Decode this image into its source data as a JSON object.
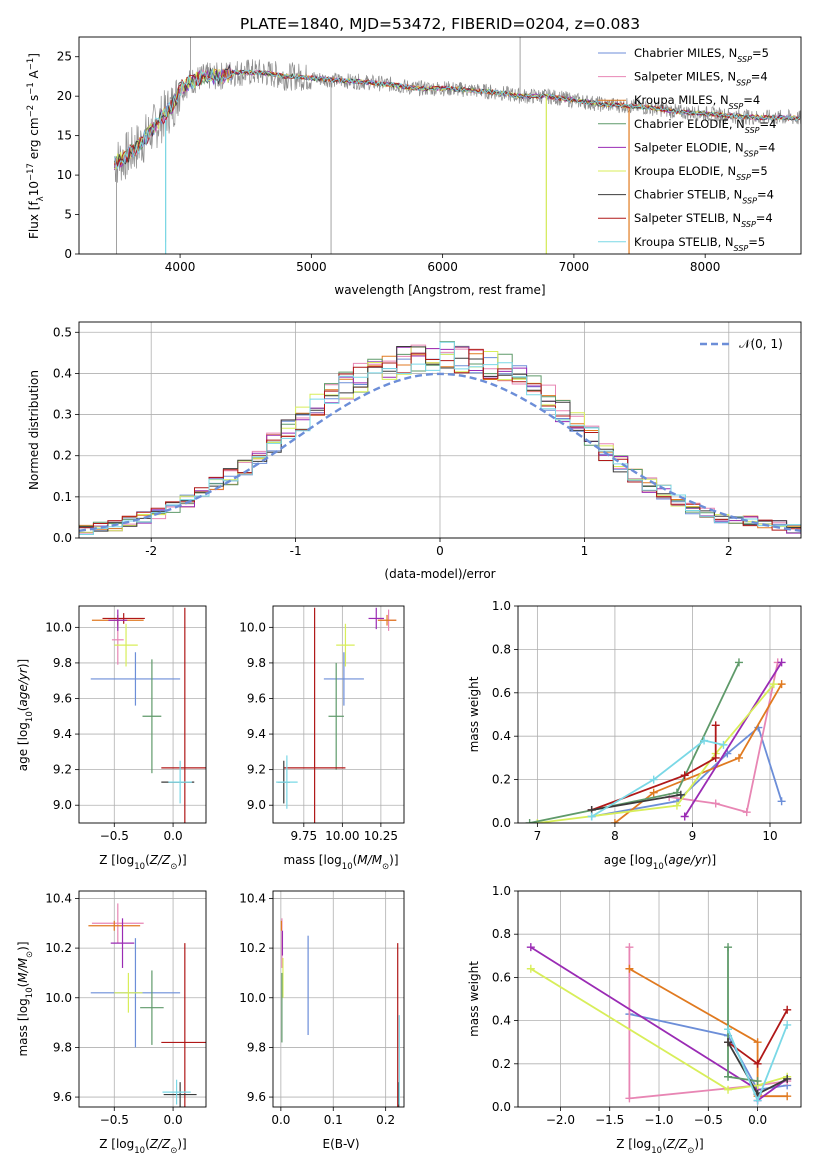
{
  "title": "PLATE=1840, MJD=53472, FIBERID=0204, z=0.083",
  "colors": [
    "#6c8ed8",
    "#e886b4",
    "#3b3b3b",
    "#e07a20",
    "#9a2bb4",
    "#d8ee5a",
    "#5f9a6a",
    "#b01818",
    "#7ad8e6",
    "#8c8c8c"
  ],
  "chart_data": [
    {
      "id": "spectrum",
      "type": "line",
      "title": "PLATE=1840, MJD=53472, FIBERID=0204, z=0.083",
      "xlabel": "wavelength [Angstrom, rest frame]",
      "ylabel": "Flux [f",
      "ylabel_sub": "λ",
      "ylabel_rest": "10",
      "ylabel_exp": "−17",
      "ylabel_unit": " erg cm",
      "ylabel_unit_exp": "−2",
      "ylabel_s": " s",
      "ylabel_s_exp": "−1",
      "ylabel_A": " A",
      "ylabel_A_exp": "−1",
      "ylabel_close": "]",
      "xlim": [
        3230,
        8730
      ],
      "ylim": [
        0,
        27.5
      ],
      "xticks": [
        4000,
        5000,
        6000,
        7000,
        8000
      ],
      "yticks": [
        0,
        5,
        10,
        15,
        20,
        25
      ],
      "legend_position": "top-right",
      "legend": [
        {
          "prefix": "Chabrier MILES, N",
          "sub": "SSP",
          "suffix": "=5",
          "color_index": 0
        },
        {
          "prefix": "Salpeter MILES, N",
          "sub": "SSP",
          "suffix": "=4",
          "color_index": 1
        },
        {
          "prefix": "Kroupa MILES, N",
          "sub": "SSP",
          "suffix": "=4",
          "color_index": 3
        },
        {
          "prefix": "Chabrier ELODIE, N",
          "sub": "SSP",
          "suffix": "=4",
          "color_index": 6
        },
        {
          "prefix": "Salpeter ELODIE, N",
          "sub": "SSP",
          "suffix": "=4",
          "color_index": 4
        },
        {
          "prefix": "Kroupa ELODIE, N",
          "sub": "SSP",
          "suffix": "=5",
          "color_index": 5
        },
        {
          "prefix": "Chabrier STELIB, N",
          "sub": "SSP",
          "suffix": "=4",
          "color_index": 2
        },
        {
          "prefix": "Salpeter STELIB, N",
          "sub": "SSP",
          "suffix": "=4",
          "color_index": 7
        },
        {
          "prefix": "Kroupa STELIB, N",
          "sub": "SSP",
          "suffix": "=5",
          "color_index": 8
        }
      ],
      "continuum": {
        "x": [
          3500,
          3600,
          3700,
          3800,
          3900,
          3950,
          4000,
          4100,
          4200,
          4300,
          4400,
          4500,
          4600,
          4700,
          4800,
          4900,
          5000,
          5200,
          5400,
          5600,
          5800,
          6000,
          6200,
          6400,
          6600,
          6800,
          7000,
          7200,
          7400,
          7600,
          7800,
          8000,
          8200,
          8400,
          8600,
          8730
        ],
        "y": [
          11.5,
          12.5,
          14,
          16,
          18,
          19,
          21,
          22,
          22.5,
          22.5,
          23,
          23,
          23,
          22.8,
          22.5,
          22.5,
          22.3,
          22,
          21.8,
          21.5,
          21,
          21,
          20.8,
          20.5,
          20,
          20,
          19.5,
          19,
          18.8,
          18.5,
          18,
          17.8,
          17.5,
          17.3,
          17.3,
          17.2
        ]
      },
      "deep_features": [
        {
          "x": 3890,
          "y": 1.5
        },
        {
          "x": 5150,
          "y": 0
        },
        {
          "x": 6790,
          "y": 0
        },
        {
          "x": 7420,
          "y": 0
        },
        {
          "x": 3515,
          "y": 0
        }
      ],
      "spike_features": [
        {
          "x": 4080,
          "y": 28
        },
        {
          "x": 6590,
          "y": 28
        }
      ]
    },
    {
      "id": "residuals",
      "type": "step",
      "xlabel": "(data-model)/error",
      "ylabel": "Normed distribution",
      "xlim": [
        -2.5,
        2.5
      ],
      "ylim": [
        0,
        0.525
      ],
      "xticks": [
        -2,
        -1,
        0,
        1,
        2
      ],
      "yticks": [
        0.0,
        0.1,
        0.2,
        0.3,
        0.4,
        0.5
      ],
      "legend_position": "top-right",
      "reference_label": "𝒩(0, 1)",
      "reference_color": "#6c8ed8",
      "bin_width": 0.1,
      "series_profile": [
        0.02,
        0.025,
        0.03,
        0.04,
        0.05,
        0.06,
        0.075,
        0.09,
        0.11,
        0.13,
        0.15,
        0.175,
        0.2,
        0.23,
        0.26,
        0.29,
        0.32,
        0.35,
        0.37,
        0.39,
        0.41,
        0.42,
        0.43,
        0.44,
        0.44,
        0.44,
        0.43,
        0.43,
        0.42,
        0.41,
        0.39,
        0.37,
        0.34,
        0.31,
        0.28,
        0.25,
        0.21,
        0.18,
        0.15,
        0.13,
        0.11,
        0.09,
        0.07,
        0.06,
        0.05,
        0.045,
        0.04,
        0.035,
        0.03,
        0.025
      ]
    },
    {
      "id": "age-vs-Z",
      "type": "scatter",
      "xlabel": "Z [log",
      "xlabel_sub": "10",
      "xlabel_rest": "(Z/Z",
      "xlabel_sun": "⊙",
      "xlabel_close": ")]",
      "ylabel": "age  [log",
      "ylabel_sub": "10",
      "ylabel_rest": "(age/yr)]",
      "xlim": [
        -0.8,
        0.28
      ],
      "ylim": [
        8.9,
        10.12
      ],
      "xticks": [
        -0.5,
        0.0
      ],
      "xticklabels": [
        "−0.5",
        "0.0"
      ],
      "yticks": [
        9.0,
        9.2,
        9.4,
        9.6,
        9.8,
        10.0
      ],
      "points": [
        {
          "x": -0.32,
          "y": 9.71,
          "xerr": 0.38,
          "yerr": 0.15,
          "color_index": 0
        },
        {
          "x": -0.47,
          "y": 9.93,
          "xerr": 0.05,
          "yerr": 0.14,
          "color_index": 1
        },
        {
          "x": -0.47,
          "y": 10.04,
          "xerr": 0.22,
          "yerr": 0.03,
          "color_index": 3
        },
        {
          "x": -0.42,
          "y": 10.05,
          "xerr": 0.18,
          "yerr": 0.03,
          "color_index": 7
        },
        {
          "x": -0.47,
          "y": 10.04,
          "xerr": 0.08,
          "yerr": 0.06,
          "color_index": 4
        },
        {
          "x": -0.4,
          "y": 9.9,
          "xerr": 0.1,
          "yerr": 0.12,
          "color_index": 5
        },
        {
          "x": -0.18,
          "y": 9.5,
          "xerr": 0.08,
          "yerr": 0.32,
          "color_index": 6
        },
        {
          "x": 0.1,
          "y": 9.21,
          "xerr": 0.2,
          "yerr": 0.9,
          "color_index": 7
        },
        {
          "x": 0.04,
          "y": 9.13,
          "xerr": 0.14,
          "yerr": 0.0,
          "color_index": 2
        },
        {
          "x": 0.06,
          "y": 9.13,
          "xerr": 0.1,
          "yerr": 0.12,
          "color_index": 8
        }
      ]
    },
    {
      "id": "age-vs-mass",
      "type": "scatter",
      "xlabel": "mass [log",
      "xlabel_sub": "10",
      "xlabel_rest": "(M/M",
      "xlabel_sun": "⊙",
      "xlabel_close": ")]",
      "xlim": [
        9.55,
        10.4
      ],
      "ylim": [
        8.9,
        10.12
      ],
      "xticks": [
        9.75,
        10.0,
        10.25
      ],
      "xticklabels": [
        "9.75",
        "10.00",
        "10.25"
      ],
      "yticks": [
        9.0,
        9.2,
        9.4,
        9.6,
        9.8,
        10.0
      ],
      "points": [
        {
          "x": 10.01,
          "y": 9.71,
          "xerr": 0.13,
          "yerr": 0.15,
          "color_index": 0
        },
        {
          "x": 10.3,
          "y": 10.04,
          "xerr": 0.05,
          "yerr": 0.06,
          "color_index": 1
        },
        {
          "x": 10.29,
          "y": 10.04,
          "xerr": 0.06,
          "yerr": 0.03,
          "color_index": 3
        },
        {
          "x": 10.22,
          "y": 10.05,
          "xerr": 0.05,
          "yerr": 0.06,
          "color_index": 4
        },
        {
          "x": 10.02,
          "y": 9.9,
          "xerr": 0.06,
          "yerr": 0.12,
          "color_index": 5
        },
        {
          "x": 9.96,
          "y": 9.5,
          "xerr": 0.05,
          "yerr": 0.3,
          "color_index": 6
        },
        {
          "x": 9.82,
          "y": 9.21,
          "xerr": 0.2,
          "yerr": 0.9,
          "color_index": 7
        },
        {
          "x": 9.62,
          "y": 9.13,
          "xerr": 0.04,
          "yerr": 0.12,
          "color_index": 2
        },
        {
          "x": 9.64,
          "y": 9.13,
          "xerr": 0.07,
          "yerr": 0.15,
          "color_index": 8
        }
      ]
    },
    {
      "id": "weight-vs-age",
      "type": "line",
      "xlabel": "age  [log",
      "xlabel_sub": "10",
      "xlabel_rest": "(age/yr)]",
      "ylabel": "mass weight",
      "xlim": [
        6.75,
        10.4
      ],
      "ylim": [
        0,
        1.0
      ],
      "xticks": [
        7,
        8,
        9,
        10
      ],
      "yticks": [
        0.0,
        0.2,
        0.4,
        0.6,
        0.8,
        1.0
      ],
      "series": [
        {
          "color_index": 0,
          "x": [
            7.7,
            8.8,
            9.45,
            9.85,
            10.15
          ],
          "y": [
            0.03,
            0.1,
            0.32,
            0.44,
            0.1
          ]
        },
        {
          "color_index": 1,
          "x": [
            8.7,
            9.3,
            9.7,
            10.1
          ],
          "y": [
            0.12,
            0.09,
            0.05,
            0.74
          ]
        },
        {
          "color_index": 3,
          "x": [
            8.0,
            8.5,
            9.6,
            10.15
          ],
          "y": [
            0.0,
            0.14,
            0.3,
            0.64
          ]
        },
        {
          "color_index": 4,
          "x": [
            8.9,
            10.15
          ],
          "y": [
            0.03,
            0.74
          ]
        },
        {
          "color_index": 5,
          "x": [
            7.0,
            8.8,
            9.3,
            10.05
          ],
          "y": [
            0.0,
            0.08,
            0.32,
            0.64
          ]
        },
        {
          "color_index": 6,
          "x": [
            6.9,
            8.8,
            9.6
          ],
          "y": [
            0.0,
            0.14,
            0.74
          ]
        },
        {
          "color_index": 7,
          "x": [
            7.7,
            8.9,
            9.3,
            9.3
          ],
          "y": [
            0.06,
            0.22,
            0.3,
            0.45
          ]
        },
        {
          "color_index": 2,
          "x": [
            7.7,
            8.85
          ],
          "y": [
            0.06,
            0.13
          ]
        },
        {
          "color_index": 8,
          "x": [
            7.7,
            8.5,
            9.15,
            9.4
          ],
          "y": [
            0.03,
            0.2,
            0.38,
            0.36
          ]
        }
      ]
    },
    {
      "id": "mass-vs-Z",
      "type": "scatter",
      "xlabel": "Z [log",
      "xlabel_sub": "10",
      "xlabel_rest": "(Z/Z",
      "xlabel_sun": "⊙",
      "xlabel_close": ")]",
      "ylabel": "mass [log",
      "ylabel_sub": "10",
      "ylabel_rest": "(M/M",
      "ylabel_sun": "⊙",
      "ylabel_close": ")]",
      "xlim": [
        -0.8,
        0.28
      ],
      "ylim": [
        9.56,
        10.43
      ],
      "xticks": [
        -0.5,
        0.0
      ],
      "xticklabels": [
        "−0.5",
        "0.0"
      ],
      "yticks": [
        9.6,
        9.8,
        10.0,
        10.2,
        10.4
      ],
      "points": [
        {
          "x": -0.32,
          "y": 10.02,
          "xerr": 0.38,
          "yerr": 0.22,
          "color_index": 0
        },
        {
          "x": -0.47,
          "y": 10.3,
          "xerr": 0.22,
          "yerr": 0.08,
          "color_index": 1
        },
        {
          "x": -0.5,
          "y": 10.29,
          "xerr": 0.22,
          "yerr": 0.02,
          "color_index": 3
        },
        {
          "x": -0.43,
          "y": 10.22,
          "xerr": 0.1,
          "yerr": 0.1,
          "color_index": 4
        },
        {
          "x": -0.38,
          "y": 10.02,
          "xerr": 0.12,
          "yerr": 0.08,
          "color_index": 5
        },
        {
          "x": -0.18,
          "y": 9.96,
          "xerr": 0.1,
          "yerr": 0.15,
          "color_index": 6
        },
        {
          "x": 0.1,
          "y": 9.82,
          "xerr": 0.2,
          "yerr": 0.4,
          "color_index": 7
        },
        {
          "x": 0.06,
          "y": 9.61,
          "xerr": 0.14,
          "yerr": 0.05,
          "color_index": 2
        },
        {
          "x": 0.03,
          "y": 9.62,
          "xerr": 0.12,
          "yerr": 0.05,
          "color_index": 8
        }
      ]
    },
    {
      "id": "mass-vs-ebv",
      "type": "scatter",
      "xlabel": "E(B-V)",
      "xlim": [
        -0.015,
        0.235
      ],
      "ylim": [
        9.56,
        10.43
      ],
      "xticks": [
        0.0,
        0.1,
        0.2
      ],
      "xticklabels": [
        "0.0",
        "0.1",
        "0.2"
      ],
      "yticks": [
        9.6,
        9.8,
        10.0,
        10.2,
        10.4
      ],
      "points": [
        {
          "x": 0.052,
          "y": 10.05,
          "xerr": 0.0,
          "yerr": 0.2,
          "color_index": 0
        },
        {
          "x": 0.002,
          "y": 10.22,
          "xerr": 0.0,
          "yerr": 0.1,
          "color_index": 1
        },
        {
          "x": 0.001,
          "y": 10.29,
          "xerr": 0.0,
          "yerr": 0.02,
          "color_index": 3
        },
        {
          "x": 0.003,
          "y": 10.22,
          "xerr": 0.0,
          "yerr": 0.05,
          "color_index": 4
        },
        {
          "x": 0.004,
          "y": 10.08,
          "xerr": 0.0,
          "yerr": 0.08,
          "color_index": 5
        },
        {
          "x": 0.002,
          "y": 9.96,
          "xerr": 0.0,
          "yerr": 0.14,
          "color_index": 6
        },
        {
          "x": 0.223,
          "y": 9.82,
          "xerr": 0.0,
          "yerr": 0.4,
          "color_index": 7
        },
        {
          "x": 0.225,
          "y": 9.61,
          "xerr": 0.0,
          "yerr": 0.05,
          "color_index": 2
        },
        {
          "x": 0.226,
          "y": 9.75,
          "xerr": 0.0,
          "yerr": 0.18,
          "color_index": 8
        }
      ]
    },
    {
      "id": "weight-vs-Z",
      "type": "line",
      "xlabel": "Z [log",
      "xlabel_sub": "10",
      "xlabel_rest": "(Z/Z",
      "xlabel_sun": "⊙",
      "xlabel_close": ")]",
      "ylabel": "mass weight",
      "xlim": [
        -2.43,
        0.44
      ],
      "ylim": [
        0,
        1.0
      ],
      "xticks": [
        -2.0,
        -1.5,
        -1.0,
        -0.5,
        0.0
      ],
      "xticklabels": [
        "−2.0",
        "−1.5",
        "−1.0",
        "−0.5",
        "0.0"
      ],
      "yticks": [
        0.0,
        0.2,
        0.4,
        0.6,
        0.8,
        1.0
      ],
      "series": [
        {
          "color_index": 0,
          "x": [
            -1.3,
            -0.3,
            0.0,
            0.3
          ],
          "y": [
            0.43,
            0.33,
            0.08,
            0.1
          ]
        },
        {
          "color_index": 1,
          "x": [
            -1.3,
            -1.3,
            0.0,
            0.3
          ],
          "y": [
            0.74,
            0.04,
            0.1,
            0.12
          ]
        },
        {
          "color_index": 3,
          "x": [
            -1.3,
            0.0,
            0.0,
            0.3
          ],
          "y": [
            0.64,
            0.3,
            0.05,
            0.05
          ]
        },
        {
          "color_index": 4,
          "x": [
            -2.3,
            0.0,
            0.0,
            0.3
          ],
          "y": [
            0.74,
            0.08,
            0.03,
            0.13
          ]
        },
        {
          "color_index": 5,
          "x": [
            -2.3,
            -0.3,
            0.0,
            0.3
          ],
          "y": [
            0.64,
            0.08,
            0.1,
            0.14
          ]
        },
        {
          "color_index": 6,
          "x": [
            -0.3,
            -0.3,
            0.0
          ],
          "y": [
            0.74,
            0.14,
            0.12
          ]
        },
        {
          "color_index": 7,
          "x": [
            -0.3,
            0.0,
            0.3
          ],
          "y": [
            0.3,
            0.2,
            0.45
          ]
        },
        {
          "color_index": 2,
          "x": [
            -0.3,
            0.0,
            0.3
          ],
          "y": [
            0.3,
            0.06,
            0.13
          ]
        },
        {
          "color_index": 8,
          "x": [
            -0.3,
            0.0,
            0.3
          ],
          "y": [
            0.36,
            0.03,
            0.38
          ]
        }
      ]
    }
  ]
}
